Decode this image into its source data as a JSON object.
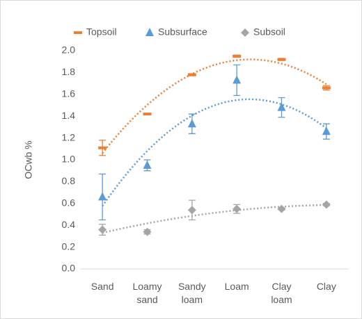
{
  "chart_data": {
    "type": "line",
    "y_label": "OCwb %",
    "categories": [
      "Sand",
      "Loamy sand",
      "Sandy loam",
      "Loam",
      "Clay loam",
      "Clay"
    ],
    "series": [
      {
        "name": "Topsoil",
        "color": "#ed7d31",
        "marker": "dash",
        "values": [
          1.11,
          1.42,
          1.78,
          1.95,
          1.92,
          1.66
        ],
        "errors": [
          0.07,
          0.005,
          0.01,
          0.01,
          0.01,
          0.02
        ]
      },
      {
        "name": "Subsurface",
        "color": "#5b9bd5",
        "marker": "triangle",
        "values": [
          0.66,
          0.95,
          1.33,
          1.73,
          1.48,
          1.26
        ],
        "errors": [
          0.21,
          0.05,
          0.09,
          0.14,
          0.09,
          0.07
        ]
      },
      {
        "name": "Subsoil",
        "color": "#a5a5a5",
        "marker": "diamond",
        "values": [
          0.36,
          0.34,
          0.54,
          0.55,
          0.55,
          0.59
        ],
        "errors": [
          0.05,
          0.02,
          0.09,
          0.04,
          0.01,
          0.01
        ]
      }
    ],
    "ylim": [
      0,
      2
    ],
    "yticks": [
      {
        "value": 0,
        "label": "0.0"
      },
      {
        "value": 0.2,
        "label": "0.2"
      },
      {
        "value": 0.4,
        "label": "0.4"
      },
      {
        "value": 0.6,
        "label": "0.6"
      },
      {
        "value": 0.8,
        "label": "0.8"
      },
      {
        "value": 1,
        "label": "1.0"
      },
      {
        "value": 1.2,
        "label": "1.2"
      },
      {
        "value": 1.4,
        "label": "1.4"
      },
      {
        "value": 1.6,
        "label": "1.6"
      },
      {
        "value": 1.8,
        "label": "1.8"
      },
      {
        "value": 2,
        "label": "2.0"
      }
    ],
    "trendline": "polynomial-2",
    "grid": false
  }
}
